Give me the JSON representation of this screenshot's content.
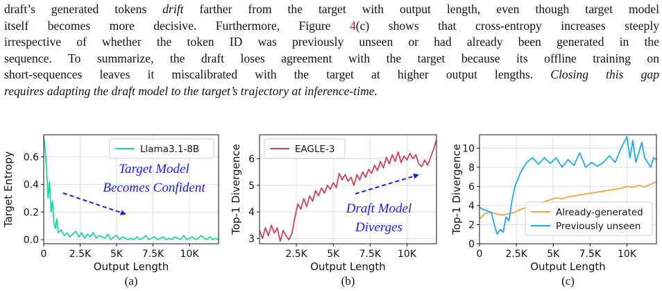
{
  "paragraph": {
    "l1_a": "draft’s generated tokens ",
    "l1_em": "drift",
    "l1_b": " farther from the target with output length, even though target model",
    "l2_a": "itself becomes more decisive. Furthermore, Figure ",
    "l2_ref": "4",
    "l2_b": "(c) shows that cross-entropy increases steeply",
    "l3": "irrespective of whether the token ID was previously unseen or had already been generated in the",
    "l4": "sequence. To summarize, the draft loses agreement with the target because its offline training on",
    "l5_a": "short-sequences leaves it miscalibrated with the target at higher output lengths. ",
    "l5_em": "Closing this gap",
    "l6_em": "requires adapting the draft model to the target’s trajectory at inference-time."
  },
  "colors": {
    "teal": "#1fd4a4",
    "red": "#c8435a",
    "orange": "#e8a73a",
    "blue": "#1ba8f0",
    "annotation": "#1a1ae6"
  },
  "chart_data": [
    {
      "type": "line",
      "xlabel": "Output Length",
      "ylabel": "Target Entropy",
      "caption": "(a)",
      "xlim": [
        0,
        12000
      ],
      "ylim": [
        -0.03,
        0.76
      ],
      "xticks": [
        0,
        2500,
        5000,
        7500,
        10000
      ],
      "xtick_labels": [
        "0",
        "2.5K",
        "5K",
        "7.5K",
        "10K"
      ],
      "yticks": [
        0.0,
        0.2,
        0.4,
        0.6
      ],
      "ytick_labels": [
        "0.0",
        "0.2",
        "0.4",
        "0.6"
      ],
      "legend_position": "top-right",
      "annotation": [
        "Target Model",
        "Becomes Confident"
      ],
      "series": [
        {
          "name": "Llama3.1-8B",
          "color": "#1fd4a4",
          "x": [
            0,
            100,
            200,
            300,
            400,
            500,
            600,
            700,
            800,
            900,
            1000,
            1200,
            1400,
            1600,
            1800,
            2000,
            2200,
            2400,
            2600,
            2800,
            3000,
            3200,
            3400,
            3600,
            3800,
            4000,
            4200,
            4400,
            4600,
            4800,
            5000,
            5200,
            5400,
            5600,
            5800,
            6000,
            6200,
            6400,
            6600,
            6800,
            7000,
            7200,
            7400,
            7600,
            7800,
            8000,
            8200,
            8400,
            8600,
            8800,
            9000,
            9200,
            9400,
            9600,
            9800,
            10000,
            10200,
            10400,
            10600,
            10800,
            11000,
            11200,
            11400,
            11600,
            11800,
            12000
          ],
          "y": [
            0.75,
            0.65,
            0.5,
            0.3,
            0.42,
            0.2,
            0.28,
            0.12,
            0.08,
            0.15,
            0.05,
            0.07,
            0.03,
            0.05,
            0.02,
            0.04,
            0.06,
            0.02,
            0.05,
            0.01,
            0.04,
            0.02,
            0.05,
            0.01,
            0.03,
            0.02,
            0.01,
            0.04,
            0.0,
            0.02,
            0.03,
            0.0,
            0.02,
            0.01,
            0.0,
            0.01,
            0.0,
            0.02,
            0.0,
            0.01,
            0.03,
            0.0,
            0.01,
            0.02,
            0.0,
            0.01,
            0.02,
            0.0,
            0.01,
            0.0,
            0.02,
            0.01,
            0.0,
            0.03,
            0.0,
            0.01,
            0.02,
            0.0,
            0.01,
            0.03,
            0.01,
            0.0,
            0.02,
            0.0,
            0.01,
            0.0
          ]
        }
      ]
    },
    {
      "type": "line",
      "xlabel": "Output Length",
      "ylabel": "Top-1 Divergence",
      "caption": "(b)",
      "xlim": [
        0,
        12000
      ],
      "ylim": [
        2.8,
        6.9
      ],
      "xticks": [
        2500,
        5000,
        7500,
        10000
      ],
      "xtick_labels": [
        "2.5K",
        "5K",
        "7.5K",
        "10K"
      ],
      "yticks": [
        3,
        4,
        5,
        6
      ],
      "ytick_labels": [
        "3",
        "4",
        "5",
        "6"
      ],
      "legend_position": "top-left",
      "annotation": [
        "Draft Model",
        "Diverges"
      ],
      "series": [
        {
          "name": "EAGLE-3",
          "color": "#c8435a",
          "x": [
            0,
            200,
            400,
            600,
            800,
            1000,
            1200,
            1400,
            1600,
            1800,
            2000,
            2200,
            2400,
            2600,
            2800,
            3000,
            3200,
            3400,
            3600,
            3800,
            4000,
            4200,
            4400,
            4600,
            4800,
            5000,
            5200,
            5400,
            5600,
            5800,
            6000,
            6200,
            6400,
            6600,
            6800,
            7000,
            7200,
            7400,
            7600,
            7800,
            8000,
            8200,
            8400,
            8600,
            8800,
            9000,
            9200,
            9400,
            9600,
            9800,
            10000,
            10200,
            10400,
            10600,
            10800,
            11000,
            11200,
            11400,
            11600,
            11800,
            12000
          ],
          "y": [
            3.3,
            3.0,
            3.4,
            3.1,
            3.5,
            3.2,
            3.4,
            2.9,
            3.3,
            3.1,
            2.95,
            3.2,
            3.8,
            4.3,
            4.1,
            4.5,
            4.2,
            4.6,
            4.4,
            4.8,
            4.6,
            4.9,
            4.7,
            5.0,
            4.85,
            5.1,
            4.9,
            5.45,
            5.2,
            5.4,
            5.15,
            5.3,
            5.0,
            5.4,
            5.2,
            5.5,
            5.3,
            5.6,
            5.45,
            5.75,
            5.55,
            5.9,
            5.65,
            6.05,
            5.8,
            6.15,
            5.9,
            6.25,
            5.85,
            6.1,
            5.95,
            6.2,
            6.0,
            6.15,
            5.8,
            5.7,
            5.95,
            5.75,
            6.05,
            6.35,
            6.7
          ]
        }
      ]
    },
    {
      "type": "line",
      "xlabel": "Output Length",
      "ylabel": "Top-1 Divergence",
      "caption": "(c)",
      "xlim": [
        0,
        12000
      ],
      "ylim": [
        0,
        11.4
      ],
      "xticks": [
        0,
        2500,
        5000,
        7500,
        10000
      ],
      "xtick_labels": [
        "0",
        "2.5K",
        "5K",
        "7.5K",
        "10K"
      ],
      "yticks": [
        0,
        2,
        4,
        6,
        8,
        10
      ],
      "ytick_labels": [
        "0",
        "2",
        "4",
        "6",
        "8",
        "10"
      ],
      "legend_position": "bottom-right",
      "series": [
        {
          "name": "Already-generated",
          "color": "#e8a73a",
          "x": [
            0,
            400,
            800,
            1200,
            1600,
            2000,
            2400,
            2800,
            3200,
            3600,
            4000,
            4400,
            4800,
            5200,
            5600,
            6000,
            6400,
            6800,
            7200,
            7600,
            8000,
            8400,
            8800,
            9200,
            9600,
            10000,
            10400,
            10800,
            11200,
            11600,
            12000
          ],
          "y": [
            2.6,
            3.2,
            3.3,
            3.1,
            3.0,
            3.15,
            3.3,
            3.6,
            3.8,
            4.1,
            4.2,
            4.4,
            4.6,
            4.8,
            4.7,
            4.9,
            5.0,
            5.1,
            5.2,
            5.3,
            5.4,
            5.5,
            5.6,
            5.7,
            5.8,
            6.0,
            5.9,
            6.1,
            5.95,
            6.2,
            6.5
          ]
        },
        {
          "name": "Previously unseen",
          "color": "#1ba8f0",
          "x": [
            0,
            400,
            800,
            1000,
            1200,
            1400,
            1600,
            1800,
            2000,
            2200,
            2400,
            2800,
            3200,
            3600,
            4000,
            4400,
            4800,
            5200,
            5600,
            6000,
            6400,
            6800,
            7200,
            7600,
            8000,
            8400,
            8800,
            9200,
            9600,
            10000,
            10200,
            10400,
            10600,
            10800,
            11000,
            11200,
            11400,
            11600,
            11800,
            12000
          ],
          "y": [
            3.8,
            3.5,
            3.3,
            2.0,
            1.0,
            1.5,
            1.2,
            2.8,
            2.4,
            4.5,
            6.0,
            7.5,
            8.5,
            9.0,
            8.3,
            9.0,
            8.4,
            9.0,
            8.0,
            8.8,
            8.2,
            9.5,
            8.0,
            8.5,
            8.1,
            8.5,
            9.2,
            8.5,
            10.0,
            11.2,
            9.0,
            10.8,
            8.5,
            9.5,
            10.6,
            9.0,
            8.5,
            8.0,
            9.0,
            8.8
          ]
        }
      ]
    }
  ]
}
